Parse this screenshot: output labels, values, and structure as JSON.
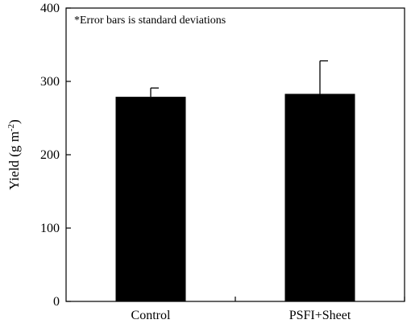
{
  "chart_data": {
    "type": "bar",
    "title": "",
    "annotation": "*Error bars is standard deviations",
    "categories": [
      "Control",
      "PSFI+Sheet"
    ],
    "values": [
      279,
      283
    ],
    "error": [
      12,
      45
    ],
    "ylabel": {
      "main": "Yield (g m",
      "sup": "-2",
      "end": ")"
    },
    "xlabel": "",
    "ylim": [
      0,
      400
    ],
    "yticks": [
      0,
      100,
      200,
      300,
      400
    ],
    "grid": false,
    "legend": "none",
    "bar_color": "#000000"
  }
}
